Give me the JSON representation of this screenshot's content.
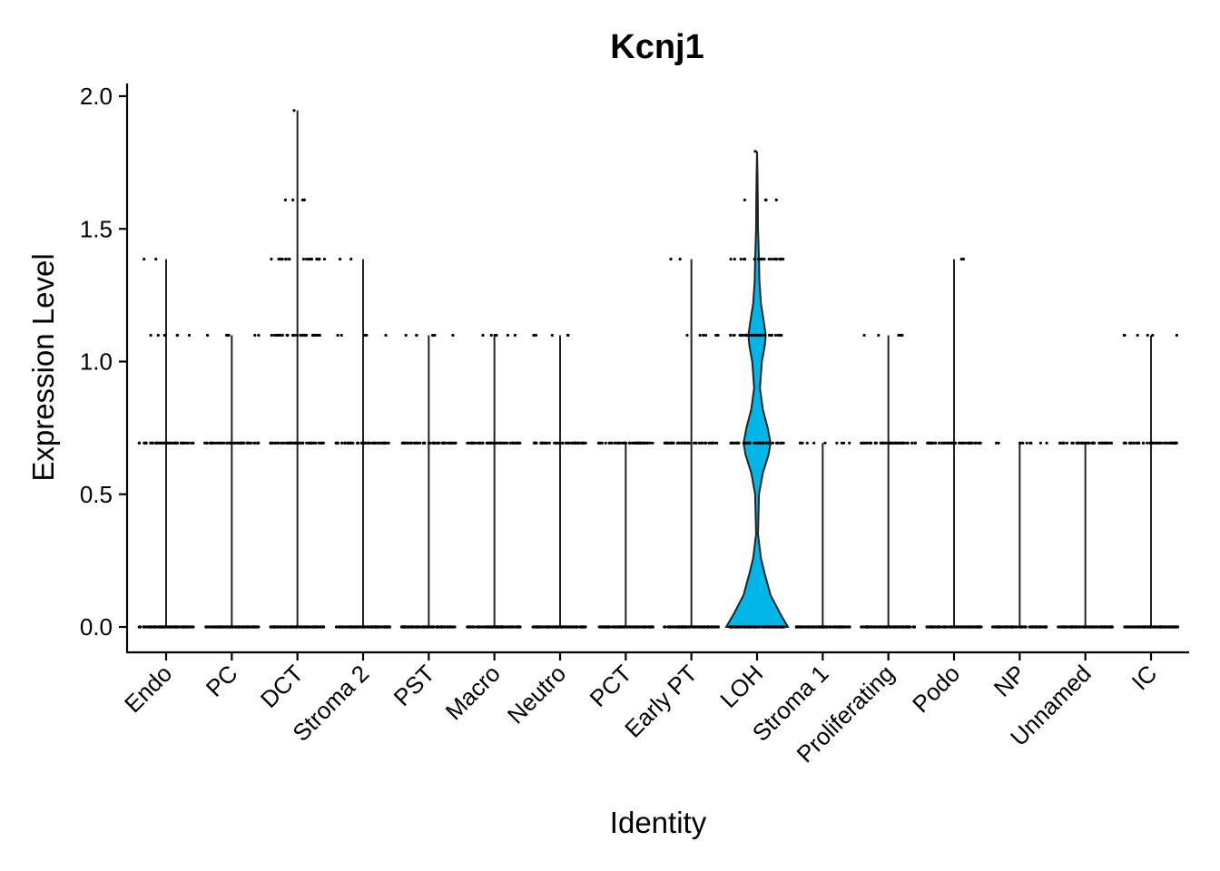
{
  "chart_data": {
    "type": "violin",
    "title": "Kcnj1",
    "xlabel": "Identity",
    "ylabel": "Expression Level",
    "ylim": [
      -0.1,
      2.05
    ],
    "yticks": [
      "0.0",
      "0.5",
      "1.0",
      "1.5",
      "2.0"
    ],
    "ytick_values": [
      0,
      0.5,
      1.0,
      1.5,
      2.0
    ],
    "fill_color": "#00B5E8",
    "categories": [
      "Endo",
      "PC",
      "DCT",
      "Stroma 2",
      "PST",
      "Macro",
      "Neutro",
      "PCT",
      "Early PT",
      "LOH",
      "Stroma 1",
      "Proliferating",
      "Podo",
      "NP",
      "Unnamed",
      "IC"
    ],
    "max_values": [
      1.386,
      1.099,
      1.946,
      1.386,
      1.099,
      1.099,
      1.099,
      0.693,
      1.386,
      1.792,
      0.693,
      1.099,
      1.386,
      0.693,
      0.693,
      1.099
    ],
    "point_levels": [
      [
        0,
        0.693,
        1.099,
        1.386
      ],
      [
        0,
        0.693,
        1.099
      ],
      [
        0,
        0.693,
        1.099,
        1.386,
        1.609,
        1.946
      ],
      [
        0,
        0.693,
        1.099,
        1.386
      ],
      [
        0,
        0.693,
        1.099
      ],
      [
        0,
        0.693,
        1.099
      ],
      [
        0,
        0.693,
        1.099
      ],
      [
        0,
        0.693
      ],
      [
        0,
        0.693,
        1.099,
        1.386
      ],
      [
        0,
        0.693,
        1.099,
        1.386,
        1.609,
        1.792
      ],
      [
        0,
        0.693
      ],
      [
        0,
        0.693,
        1.099
      ],
      [
        0,
        0.693,
        1.386
      ],
      [
        0,
        0.693
      ],
      [
        0,
        0.693
      ],
      [
        0,
        0.693,
        1.099
      ]
    ]
  }
}
